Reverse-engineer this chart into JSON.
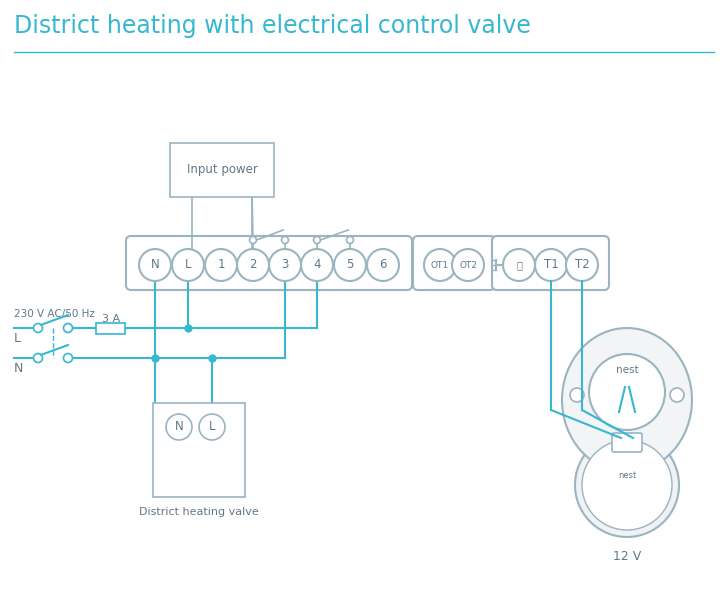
{
  "title": "District heating with electrical control valve",
  "title_color": "#35b8d0",
  "title_fontsize": 17,
  "bg_color": "#ffffff",
  "line_color": "#35b8d0",
  "box_color": "#9ab4c0",
  "text_color": "#607888",
  "terminal_labels": [
    "N",
    "L",
    "1",
    "2",
    "3",
    "4",
    "5",
    "6"
  ],
  "ot_labels": [
    "OT1",
    "OT2"
  ],
  "t_labels": [
    "T1",
    "T2"
  ],
  "input_power_label": "Input power",
  "fuse_label": "3 A",
  "ac_label": "230 V AC/50 Hz",
  "L_label": "L",
  "N_label": "N",
  "valve_label": "District heating valve",
  "valve_terminals": [
    "N",
    "L"
  ],
  "nest_label": "nest",
  "v12_label": "12 V"
}
